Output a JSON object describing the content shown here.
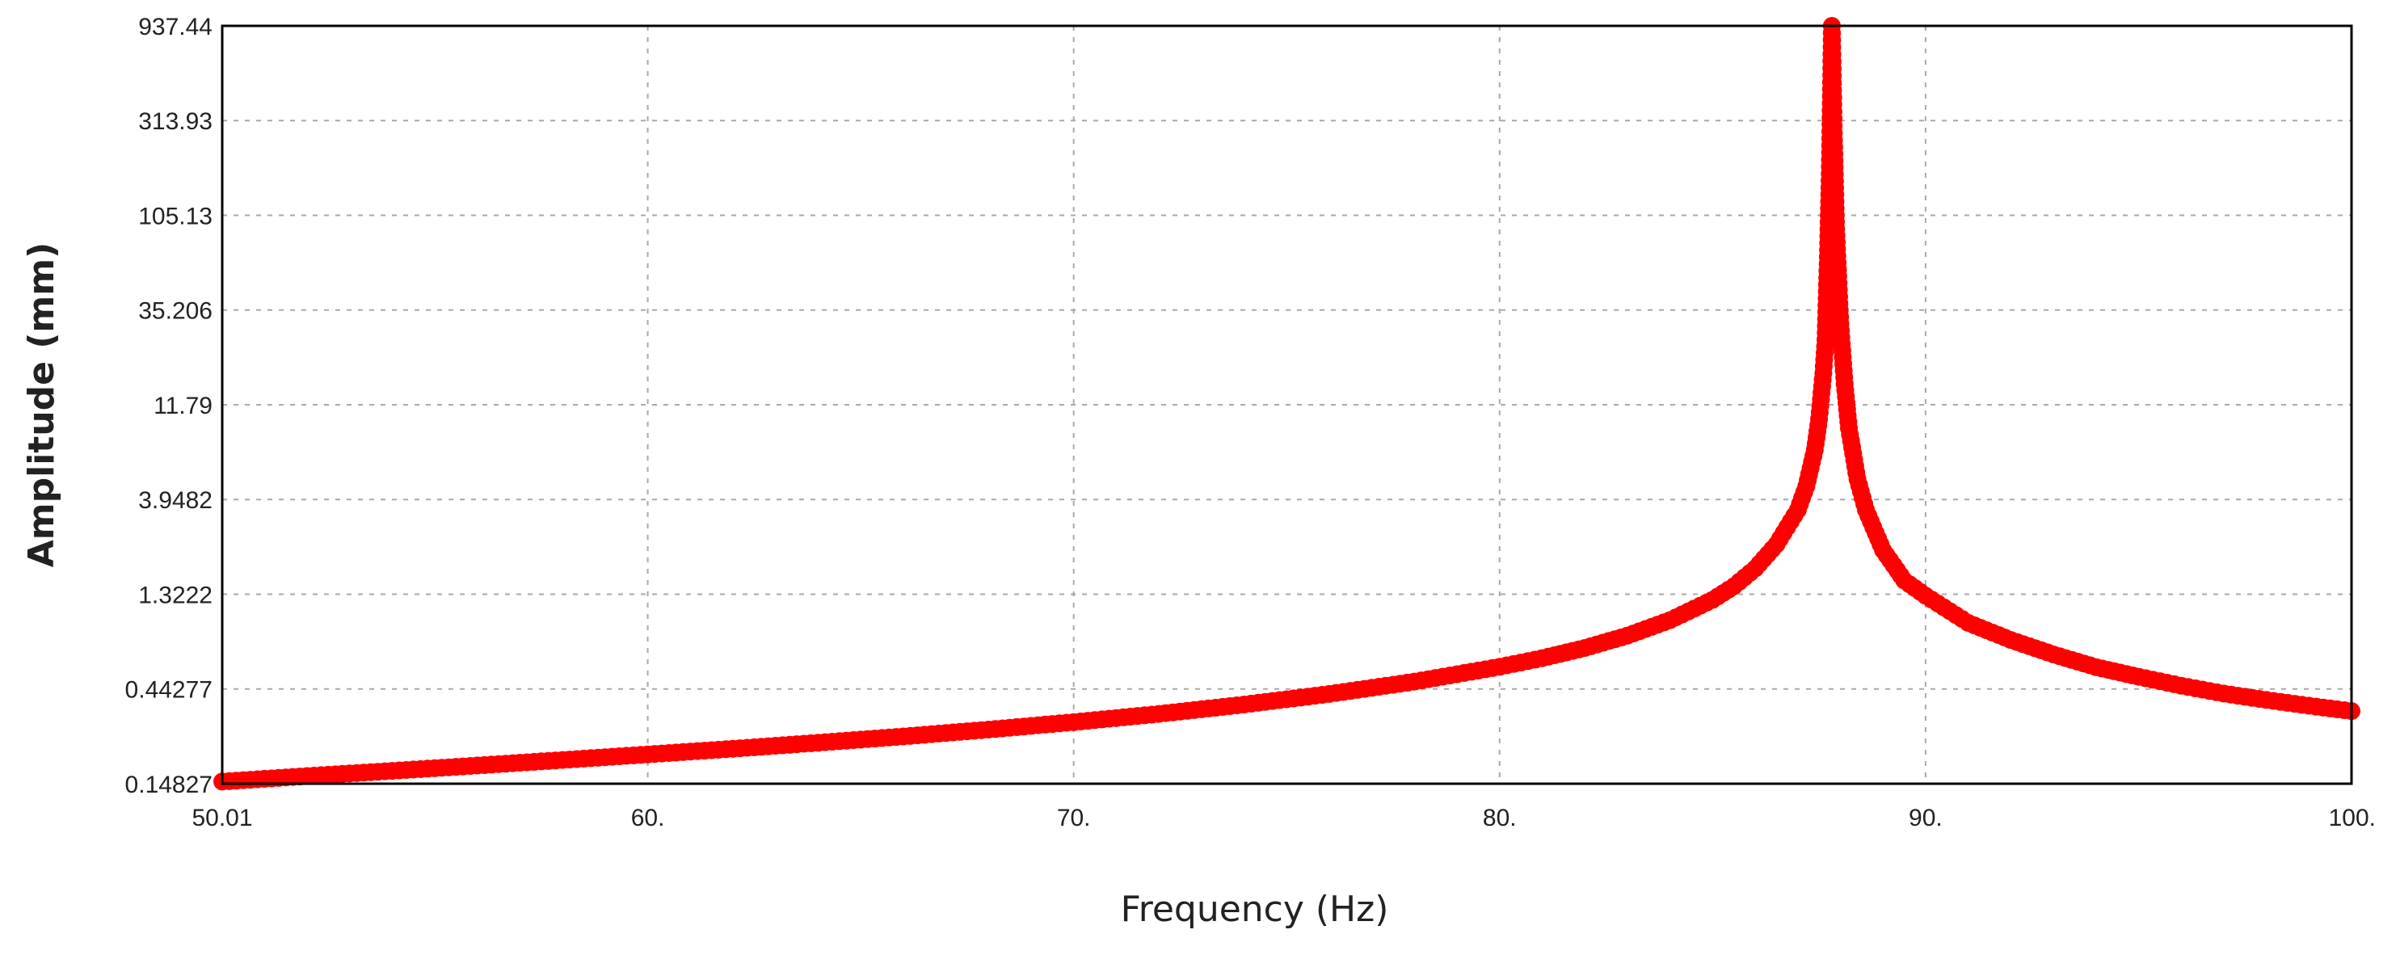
{
  "chart_data": {
    "type": "scatter",
    "title": "",
    "xlabel": "Frequency (Hz)",
    "ylabel": "Amplitude (mm)",
    "xlim": [
      50.01,
      100.0
    ],
    "ylim": [
      0.14827,
      937.44
    ],
    "yscale": "log",
    "grid": true,
    "legend": "none",
    "x_ticks": [
      "50.01",
      "60.",
      "70.",
      "80.",
      "90.",
      "100."
    ],
    "x_tick_values": [
      50.01,
      60,
      70,
      80,
      90,
      100
    ],
    "y_ticks": [
      "0.14827",
      "0.44277",
      "1.3222",
      "3.9482",
      "11.79",
      "35.206",
      "105.13",
      "313.93",
      "937.44"
    ],
    "y_tick_values": [
      0.14827,
      0.44277,
      1.3222,
      3.9482,
      11.79,
      35.206,
      105.13,
      313.93,
      937.44
    ],
    "series": [
      {
        "color": "#ff0000",
        "x": [
          50.01,
          52,
          54,
          56,
          58,
          60,
          62,
          64,
          66,
          68,
          70,
          72,
          74,
          76,
          78,
          80,
          81,
          82,
          83,
          84,
          85,
          85.5,
          86,
          86.5,
          87,
          87.2,
          87.4,
          87.5,
          87.6,
          87.65,
          87.7,
          87.75,
          87.8,
          87.85,
          87.9,
          88.0,
          88.1,
          88.2,
          88.4,
          88.6,
          89,
          89.5,
          90,
          91,
          92,
          93,
          94,
          95,
          96,
          97,
          98,
          99,
          100
        ],
        "y": [
          0.152,
          0.162,
          0.172,
          0.183,
          0.195,
          0.208,
          0.222,
          0.238,
          0.256,
          0.277,
          0.302,
          0.332,
          0.37,
          0.418,
          0.482,
          0.572,
          0.632,
          0.711,
          0.82,
          0.98,
          1.24,
          1.45,
          1.78,
          2.35,
          3.5,
          4.6,
          7.0,
          10.0,
          17.0,
          25.0,
          60.0,
          170.0,
          937.44,
          250.0,
          90.0,
          30.0,
          15.0,
          9.0,
          5.0,
          3.5,
          2.2,
          1.55,
          1.3,
          0.95,
          0.78,
          0.66,
          0.57,
          0.51,
          0.46,
          0.42,
          0.39,
          0.365,
          0.343
        ]
      }
    ]
  }
}
